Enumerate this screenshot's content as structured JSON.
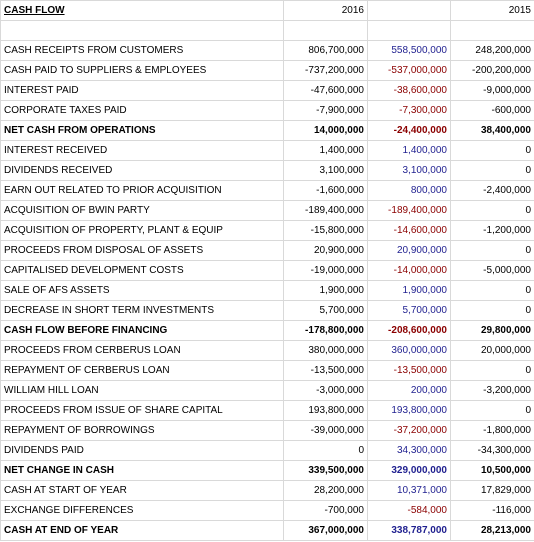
{
  "header": {
    "title": "CASH FLOW",
    "year_a": "2016",
    "year_b": "2015"
  },
  "table": {
    "rows": [
      {
        "label": "CASH RECEIPTS FROM CUSTOMERS",
        "cells": [
          "806,700,000",
          "558,500,000",
          "248,200,000"
        ]
      },
      {
        "label": "CASH PAID TO SUPPLIERS & EMPLOYEES",
        "cells": [
          "-737,200,000",
          "-537,000,000",
          "-200,200,000"
        ]
      },
      {
        "label": "INTEREST PAID",
        "cells": [
          "-47,600,000",
          "-38,600,000",
          "-9,000,000"
        ]
      },
      {
        "label": "CORPORATE TAXES PAID",
        "cells": [
          "-7,900,000",
          "-7,300,000",
          "-600,000"
        ]
      },
      {
        "label": "NET CASH FROM OPERATIONS",
        "cells": [
          "14,000,000",
          "-24,400,000",
          "38,400,000"
        ],
        "bold": true
      },
      {
        "label": "INTEREST RECEIVED",
        "cells": [
          "1,400,000",
          "1,400,000",
          "0"
        ]
      },
      {
        "label": "DIVIDENDS RECEIVED",
        "cells": [
          "3,100,000",
          "3,100,000",
          "0"
        ]
      },
      {
        "label": "EARN OUT RELATED TO PRIOR ACQUISITION",
        "cells": [
          "-1,600,000",
          "800,000",
          "-2,400,000"
        ]
      },
      {
        "label": "ACQUISITION OF BWIN PARTY",
        "cells": [
          "-189,400,000",
          "-189,400,000",
          "0"
        ]
      },
      {
        "label": "ACQUISITION OF PROPERTY, PLANT & EQUIP",
        "cells": [
          "-15,800,000",
          "-14,600,000",
          "-1,200,000"
        ]
      },
      {
        "label": "PROCEEDS FROM DISPOSAL OF ASSETS",
        "cells": [
          "20,900,000",
          "20,900,000",
          "0"
        ]
      },
      {
        "label": "CAPITALISED DEVELOPMENT COSTS",
        "cells": [
          "-19,000,000",
          "-14,000,000",
          "-5,000,000"
        ]
      },
      {
        "label": "SALE OF AFS ASSETS",
        "cells": [
          "1,900,000",
          "1,900,000",
          "0"
        ]
      },
      {
        "label": "DECREASE IN SHORT TERM INVESTMENTS",
        "cells": [
          "5,700,000",
          "5,700,000",
          "0"
        ]
      },
      {
        "label": "CASH FLOW BEFORE FINANCING",
        "cells": [
          "-178,800,000",
          "-208,600,000",
          "29,800,000"
        ],
        "bold": true
      },
      {
        "label": "PROCEEDS FROM CERBERUS LOAN",
        "cells": [
          "380,000,000",
          "360,000,000",
          "20,000,000"
        ]
      },
      {
        "label": "REPAYMENT OF CERBERUS LOAN",
        "cells": [
          "-13,500,000",
          "-13,500,000",
          "0"
        ]
      },
      {
        "label": "WILLIAM HILL LOAN",
        "cells": [
          "-3,000,000",
          "200,000",
          "-3,200,000"
        ]
      },
      {
        "label": "PROCEEDS FROM ISSUE OF SHARE CAPITAL",
        "cells": [
          "193,800,000",
          "193,800,000",
          "0"
        ]
      },
      {
        "label": "REPAYMENT OF BORROWINGS",
        "cells": [
          "-39,000,000",
          "-37,200,000",
          "-1,800,000"
        ]
      },
      {
        "label": "DIVIDENDS PAID",
        "cells": [
          "0",
          "34,300,000",
          "-34,300,000"
        ]
      },
      {
        "label": "NET CHANGE IN CASH",
        "cells": [
          "339,500,000",
          "329,000,000",
          "10,500,000"
        ],
        "bold": true
      },
      {
        "label": "CASH AT START OF YEAR",
        "cells": [
          "28,200,000",
          "10,371,000",
          "17,829,000"
        ]
      },
      {
        "label": "EXCHANGE DIFFERENCES",
        "cells": [
          "-700,000",
          "-584,000",
          "-116,000"
        ]
      },
      {
        "label": "CASH AT END OF YEAR",
        "cells": [
          "367,000,000",
          "338,787,000",
          "28,213,000"
        ],
        "bold": true
      }
    ]
  }
}
